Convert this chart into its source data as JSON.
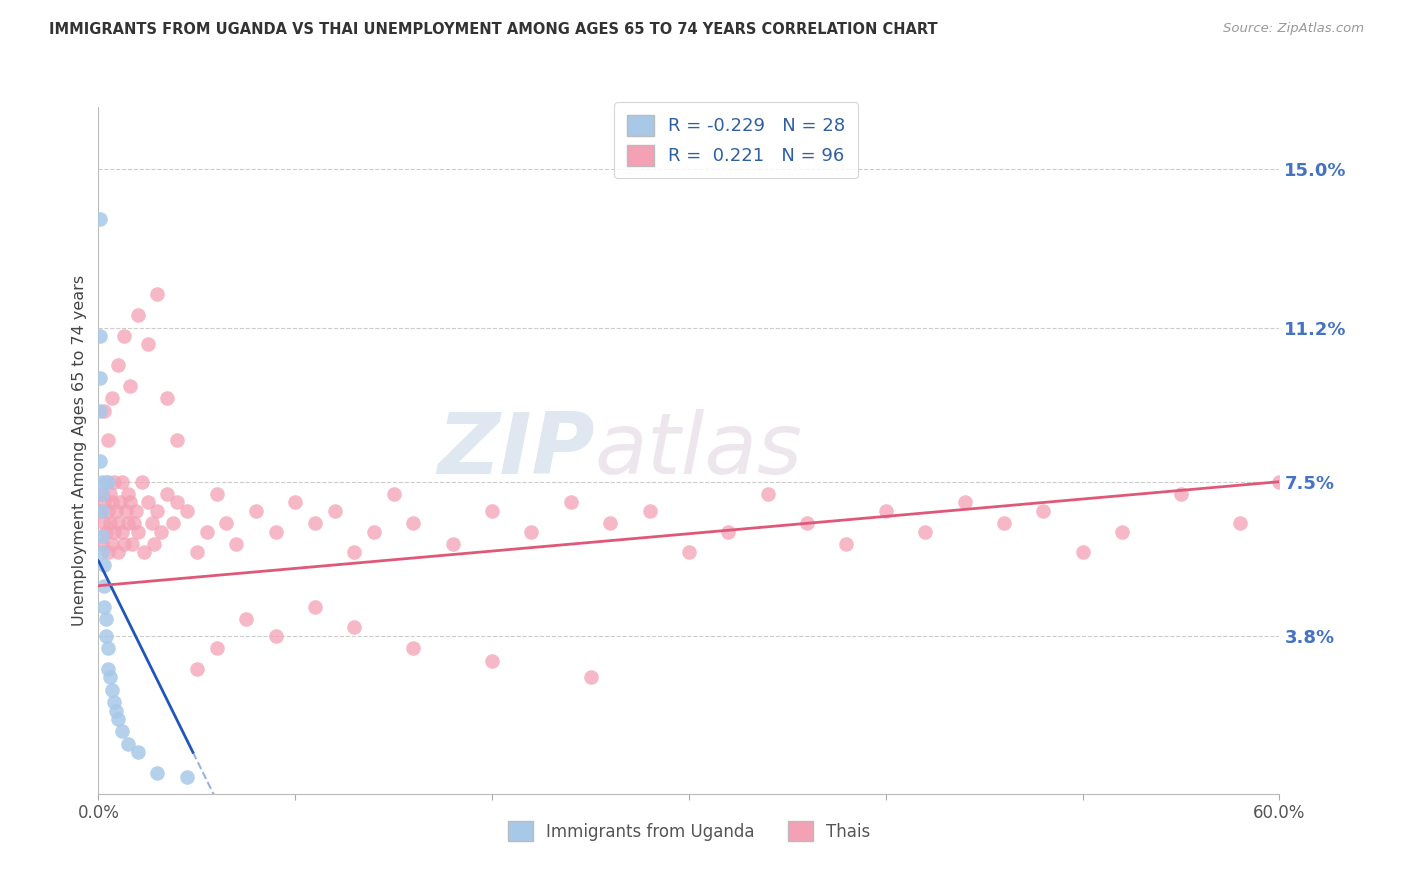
{
  "title": "IMMIGRANTS FROM UGANDA VS THAI UNEMPLOYMENT AMONG AGES 65 TO 74 YEARS CORRELATION CHART",
  "source": "Source: ZipAtlas.com",
  "ylabel": "Unemployment Among Ages 65 to 74 years",
  "xlim": [
    0.0,
    0.6
  ],
  "ylim": [
    0.0,
    0.165
  ],
  "xticks": [
    0.0,
    0.1,
    0.2,
    0.3,
    0.4,
    0.5,
    0.6
  ],
  "xticklabels_show": [
    "0.0%",
    "",
    "",
    "",
    "",
    "",
    "60.0%"
  ],
  "right_yticks": [
    0.038,
    0.075,
    0.112,
    0.15
  ],
  "right_yticklabels": [
    "3.8%",
    "7.5%",
    "11.2%",
    "15.0%"
  ],
  "legend_labels": [
    "Immigrants from Uganda",
    "Thais"
  ],
  "legend_R": [
    -0.229,
    0.221
  ],
  "legend_N": [
    28,
    96
  ],
  "uganda_color": "#a8c8e8",
  "thai_color": "#f4a0b5",
  "uganda_trend_color": "#2255bb",
  "thai_trend_color": "#e05878",
  "grid_color": "#cccccc",
  "background_color": "#ffffff",
  "watermark_zip": "ZIP",
  "watermark_atlas": "atlas",
  "uganda_x": [
    0.001,
    0.001,
    0.001,
    0.001,
    0.001,
    0.002,
    0.002,
    0.002,
    0.002,
    0.002,
    0.003,
    0.003,
    0.003,
    0.004,
    0.004,
    0.005,
    0.005,
    0.005,
    0.006,
    0.007,
    0.008,
    0.009,
    0.01,
    0.012,
    0.015,
    0.02,
    0.03,
    0.045
  ],
  "uganda_y": [
    0.138,
    0.11,
    0.1,
    0.092,
    0.08,
    0.075,
    0.072,
    0.068,
    0.062,
    0.058,
    0.055,
    0.05,
    0.045,
    0.042,
    0.038,
    0.035,
    0.03,
    0.075,
    0.028,
    0.025,
    0.022,
    0.02,
    0.018,
    0.015,
    0.012,
    0.01,
    0.005,
    0.004
  ],
  "thai_x": [
    0.001,
    0.002,
    0.002,
    0.003,
    0.003,
    0.004,
    0.004,
    0.005,
    0.005,
    0.006,
    0.006,
    0.007,
    0.007,
    0.008,
    0.008,
    0.009,
    0.01,
    0.01,
    0.011,
    0.012,
    0.012,
    0.013,
    0.014,
    0.015,
    0.015,
    0.016,
    0.017,
    0.018,
    0.019,
    0.02,
    0.022,
    0.023,
    0.025,
    0.027,
    0.028,
    0.03,
    0.032,
    0.035,
    0.038,
    0.04,
    0.045,
    0.05,
    0.055,
    0.06,
    0.065,
    0.07,
    0.08,
    0.09,
    0.1,
    0.11,
    0.12,
    0.13,
    0.14,
    0.15,
    0.16,
    0.18,
    0.2,
    0.22,
    0.24,
    0.26,
    0.28,
    0.3,
    0.32,
    0.34,
    0.36,
    0.38,
    0.4,
    0.42,
    0.44,
    0.46,
    0.48,
    0.5,
    0.52,
    0.55,
    0.58,
    0.6,
    0.003,
    0.005,
    0.007,
    0.01,
    0.013,
    0.016,
    0.02,
    0.025,
    0.03,
    0.035,
    0.04,
    0.05,
    0.06,
    0.075,
    0.09,
    0.11,
    0.13,
    0.16,
    0.2,
    0.25
  ],
  "thai_y": [
    0.068,
    0.072,
    0.06,
    0.065,
    0.07,
    0.063,
    0.075,
    0.058,
    0.068,
    0.072,
    0.065,
    0.07,
    0.06,
    0.075,
    0.063,
    0.068,
    0.065,
    0.058,
    0.07,
    0.063,
    0.075,
    0.06,
    0.068,
    0.072,
    0.065,
    0.07,
    0.06,
    0.065,
    0.068,
    0.063,
    0.075,
    0.058,
    0.07,
    0.065,
    0.06,
    0.068,
    0.063,
    0.072,
    0.065,
    0.07,
    0.068,
    0.058,
    0.063,
    0.072,
    0.065,
    0.06,
    0.068,
    0.063,
    0.07,
    0.065,
    0.068,
    0.058,
    0.063,
    0.072,
    0.065,
    0.06,
    0.068,
    0.063,
    0.07,
    0.065,
    0.068,
    0.058,
    0.063,
    0.072,
    0.065,
    0.06,
    0.068,
    0.063,
    0.07,
    0.065,
    0.068,
    0.058,
    0.063,
    0.072,
    0.065,
    0.075,
    0.092,
    0.085,
    0.095,
    0.103,
    0.11,
    0.098,
    0.115,
    0.108,
    0.12,
    0.095,
    0.085,
    0.03,
    0.035,
    0.042,
    0.038,
    0.045,
    0.04,
    0.035,
    0.032,
    0.028
  ]
}
